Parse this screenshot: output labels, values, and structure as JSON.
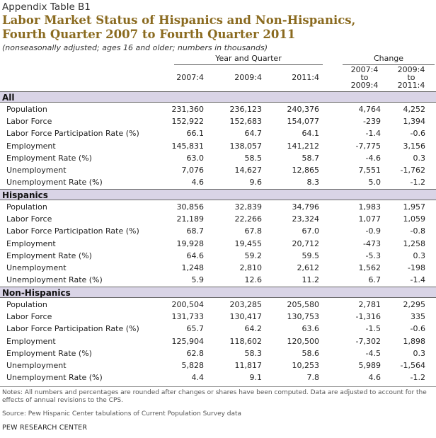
{
  "header": {
    "label": "Appendix Table B1",
    "title_line1": "Labor Market Status of Hispanics and Non-Hispanics,",
    "title_line2": "Fourth Quarter 2007 to Fourth Quarter 2011",
    "subtitle": "(nonseasonally adjusted; ages 16 and older; numbers in thousands)"
  },
  "columns": {
    "group_year": "Year and Quarter",
    "group_change": "Change",
    "c1": "2007:4",
    "c2": "2009:4",
    "c3": "2011:4",
    "c4": [
      "2007:4",
      "to",
      "2009:4"
    ],
    "c5": [
      "2009:4",
      "to",
      "2011:4"
    ]
  },
  "sections": [
    {
      "name": "All",
      "rows": [
        {
          "label": "Population",
          "values": [
            "231,360",
            "236,123",
            "240,376",
            "4,764",
            "4,252"
          ]
        },
        {
          "label": "Labor Force",
          "values": [
            "152,922",
            "152,683",
            "154,077",
            "-239",
            "1,394"
          ]
        },
        {
          "label": "Labor Force Participation Rate (%)",
          "values": [
            "66.1",
            "64.7",
            "64.1",
            "-1.4",
            "-0.6"
          ]
        },
        {
          "label": "Employment",
          "values": [
            "145,831",
            "138,057",
            "141,212",
            "-7,775",
            "3,156"
          ]
        },
        {
          "label": "Employment Rate (%)",
          "values": [
            "63.0",
            "58.5",
            "58.7",
            "-4.6",
            "0.3"
          ]
        },
        {
          "label": "Unemployment",
          "values": [
            "7,076",
            "14,627",
            "12,865",
            "7,551",
            "-1,762"
          ]
        },
        {
          "label": "Unemployment Rate (%)",
          "values": [
            "4.6",
            "9.6",
            "8.3",
            "5.0",
            "-1.2"
          ]
        }
      ]
    },
    {
      "name": "Hispanics",
      "rows": [
        {
          "label": "Population",
          "values": [
            "30,856",
            "32,839",
            "34,796",
            "1,983",
            "1,957"
          ]
        },
        {
          "label": "Labor Force",
          "values": [
            "21,189",
            "22,266",
            "23,324",
            "1,077",
            "1,059"
          ]
        },
        {
          "label": "Labor Force Participation Rate (%)",
          "values": [
            "68.7",
            "67.8",
            "67.0",
            "-0.9",
            "-0.8"
          ]
        },
        {
          "label": "Employment",
          "values": [
            "19,928",
            "19,455",
            "20,712",
            "-473",
            "1,258"
          ]
        },
        {
          "label": "Employment Rate (%)",
          "values": [
            "64.6",
            "59.2",
            "59.5",
            "-5.3",
            "0.3"
          ]
        },
        {
          "label": "Unemployment",
          "values": [
            "1,248",
            "2,810",
            "2,612",
            "1,562",
            "-198"
          ]
        },
        {
          "label": "Unemployment Rate (%)",
          "values": [
            "5.9",
            "12.6",
            "11.2",
            "6.7",
            "-1.4"
          ]
        }
      ]
    },
    {
      "name": "Non-Hispanics",
      "rows": [
        {
          "label": "Population",
          "values": [
            "200,504",
            "203,285",
            "205,580",
            "2,781",
            "2,295"
          ]
        },
        {
          "label": "Labor Force",
          "values": [
            "131,733",
            "130,417",
            "130,753",
            "-1,316",
            "335"
          ]
        },
        {
          "label": "Labor Force Participation Rate (%)",
          "values": [
            "65.7",
            "64.2",
            "63.6",
            "-1.5",
            "-0.6"
          ]
        },
        {
          "label": "Employment",
          "values": [
            "125,904",
            "118,602",
            "120,500",
            "-7,302",
            "1,898"
          ]
        },
        {
          "label": "Employment Rate (%)",
          "values": [
            "62.8",
            "58.3",
            "58.6",
            "-4.5",
            "0.3"
          ]
        },
        {
          "label": "Unemployment",
          "values": [
            "5,828",
            "11,817",
            "10,253",
            "5,989",
            "-1,564"
          ]
        },
        {
          "label": "Unemployment Rate (%)",
          "values": [
            "4.4",
            "9.1",
            "7.8",
            "4.6",
            "-1.2"
          ]
        }
      ]
    }
  ],
  "footer": {
    "notes": "Notes: All numbers and percentages are rounded after changes or shares have been computed. Data are adjusted to account for the effects of annual revisions to the CPS.",
    "source": "Source: Pew Hispanic Center tabulations of Current Population Survey data",
    "org": "PEW RESEARCH CENTER"
  }
}
